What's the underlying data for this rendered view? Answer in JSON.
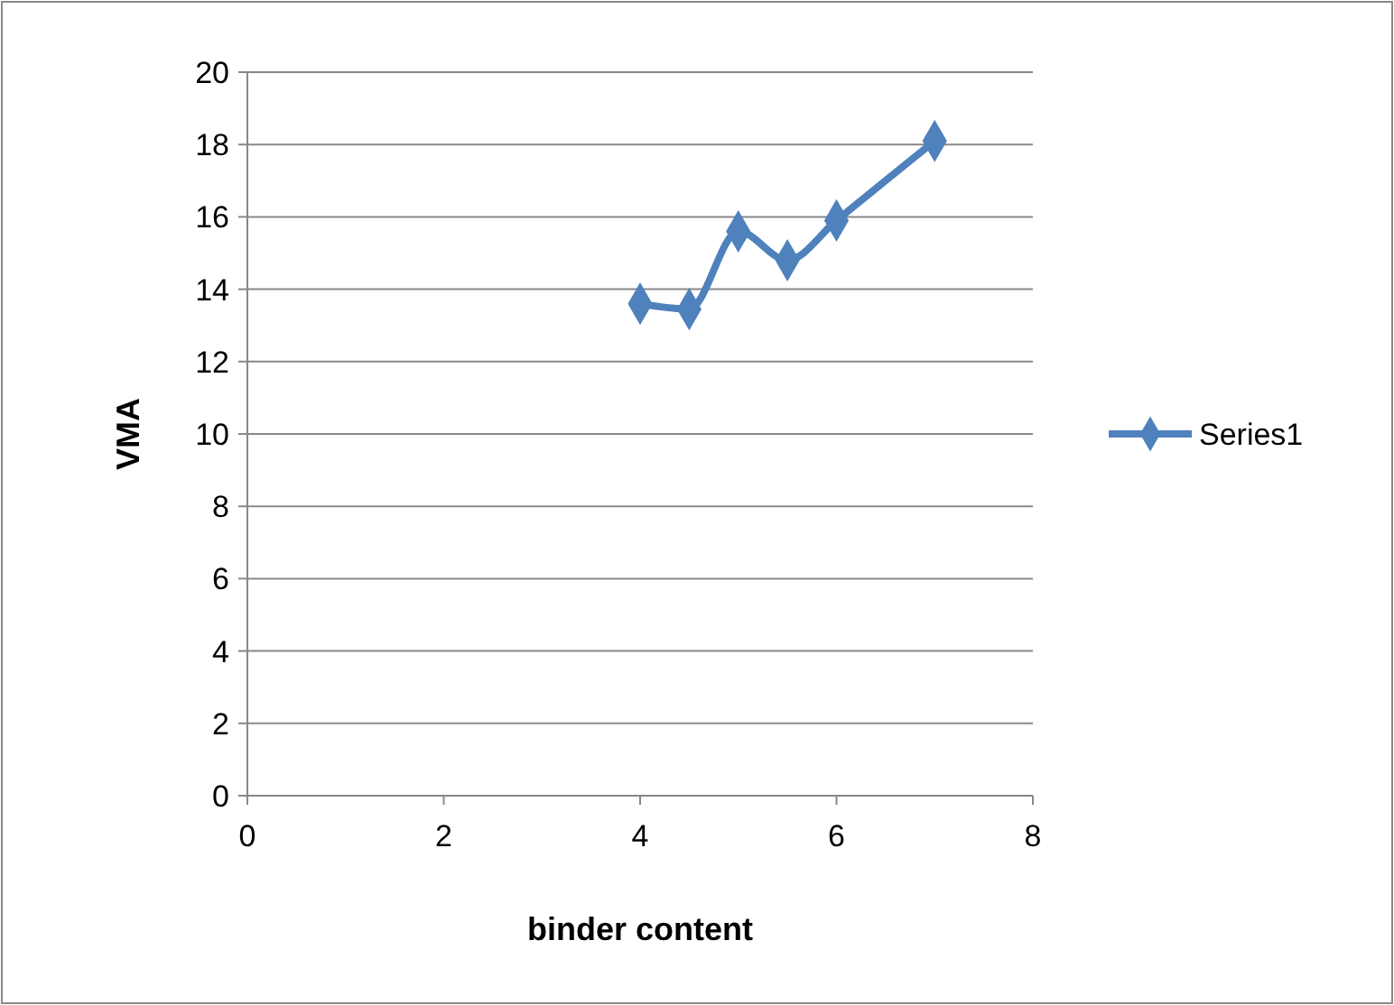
{
  "chart_data": {
    "type": "line",
    "xlabel": "binder content",
    "ylabel": "VMA",
    "x": [
      4,
      4.5,
      5,
      5.5,
      6,
      7
    ],
    "series": [
      {
        "name": "Series1",
        "color": "#4f81bd",
        "values": [
          13.6,
          13.45,
          15.6,
          14.8,
          15.9,
          18.1
        ]
      }
    ],
    "xlim": [
      0,
      8
    ],
    "xticks": [
      0,
      2,
      4,
      6,
      8
    ],
    "ylim": [
      0,
      20
    ],
    "yticks": [
      0,
      2,
      4,
      6,
      8,
      10,
      12,
      14,
      16,
      18,
      20
    ],
    "grid": "y",
    "legend": "right",
    "marker": "diamond",
    "line_style": "solid"
  }
}
